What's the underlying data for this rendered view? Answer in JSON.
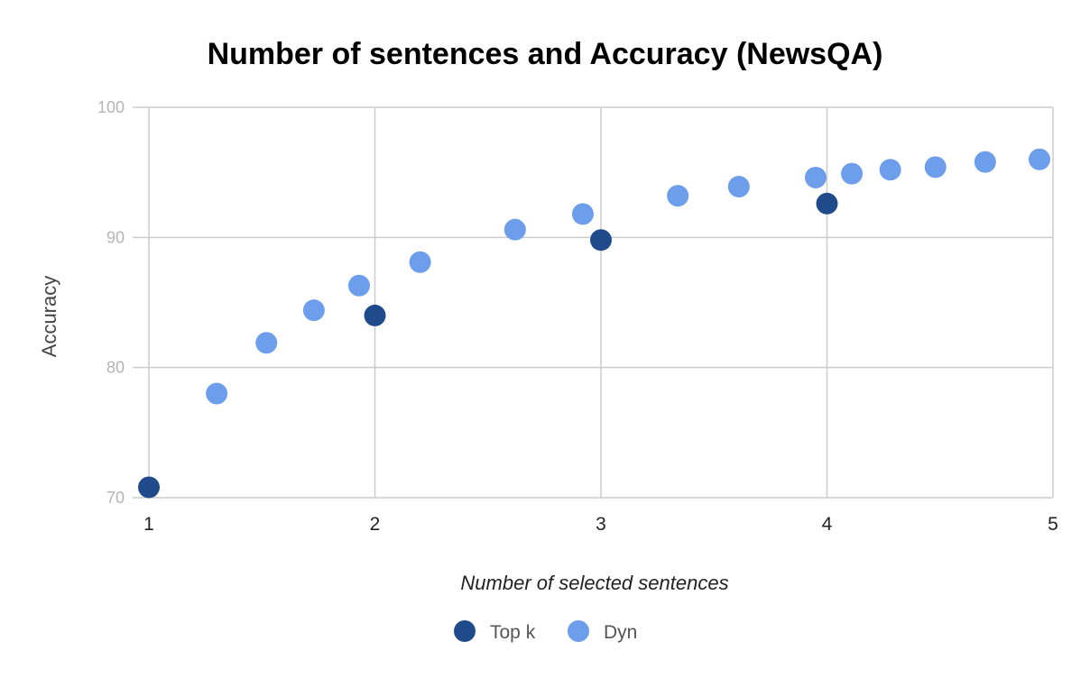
{
  "chart_data": {
    "type": "scatter",
    "title": "Number of sentences and Accuracy (NewsQA)",
    "xlabel": "Number of selected sentences",
    "ylabel": "Accuracy",
    "xlim": [
      1,
      5
    ],
    "ylim": [
      70,
      100
    ],
    "xticks": [
      1,
      2,
      3,
      4,
      5
    ],
    "yticks": [
      70,
      80,
      90,
      100
    ],
    "grid": true,
    "legend_position": "bottom",
    "series": [
      {
        "name": "Top k",
        "color": "#1f4a8c",
        "points": [
          {
            "x": 1.0,
            "y": 70.8
          },
          {
            "x": 2.0,
            "y": 84.0
          },
          {
            "x": 3.0,
            "y": 89.8
          },
          {
            "x": 4.0,
            "y": 92.6
          }
        ]
      },
      {
        "name": "Dyn",
        "color": "#6d9eeb",
        "points": [
          {
            "x": 1.3,
            "y": 78.0
          },
          {
            "x": 1.52,
            "y": 81.9
          },
          {
            "x": 1.73,
            "y": 84.4
          },
          {
            "x": 1.93,
            "y": 86.3
          },
          {
            "x": 2.2,
            "y": 88.1
          },
          {
            "x": 2.62,
            "y": 90.6
          },
          {
            "x": 2.92,
            "y": 91.8
          },
          {
            "x": 3.34,
            "y": 93.2
          },
          {
            "x": 3.61,
            "y": 93.9
          },
          {
            "x": 3.95,
            "y": 94.6
          },
          {
            "x": 4.11,
            "y": 94.9
          },
          {
            "x": 4.28,
            "y": 95.2
          },
          {
            "x": 4.48,
            "y": 95.4
          },
          {
            "x": 4.7,
            "y": 95.8
          },
          {
            "x": 4.94,
            "y": 96.0
          }
        ]
      }
    ]
  }
}
